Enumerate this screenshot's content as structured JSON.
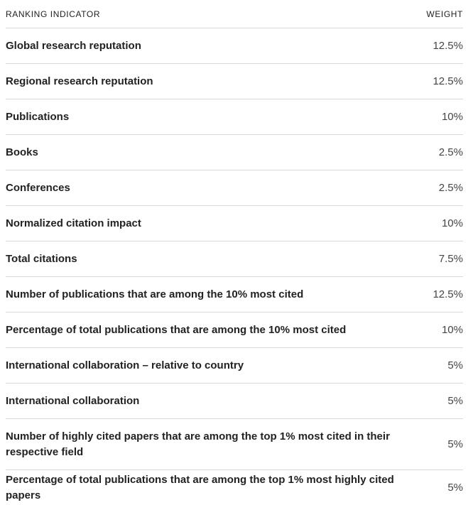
{
  "table": {
    "headers": {
      "indicator": "RANKING INDICATOR",
      "weight": "WEIGHT"
    },
    "rows": [
      {
        "indicator": "Global research reputation",
        "weight": "12.5%"
      },
      {
        "indicator": "Regional research reputation",
        "weight": "12.5%"
      },
      {
        "indicator": "Publications",
        "weight": "10%"
      },
      {
        "indicator": "Books",
        "weight": "2.5%"
      },
      {
        "indicator": "Conferences",
        "weight": "2.5%"
      },
      {
        "indicator": "Normalized citation impact",
        "weight": "10%"
      },
      {
        "indicator": "Total citations",
        "weight": "7.5%"
      },
      {
        "indicator": "Number of publications that are among the 10% most cited",
        "weight": "12.5%"
      },
      {
        "indicator": "Percentage of total publications that are among the 10% most cited",
        "weight": "10%"
      },
      {
        "indicator": "International collaboration – relative to country",
        "weight": "5%"
      },
      {
        "indicator": "International collaboration",
        "weight": "5%"
      },
      {
        "indicator": "Number of highly cited papers that are among the top 1% most cited in their respective field",
        "weight": "5%"
      },
      {
        "indicator": "Percentage of total publications that are among the top 1% most highly cited papers",
        "weight": "5%"
      }
    ]
  }
}
